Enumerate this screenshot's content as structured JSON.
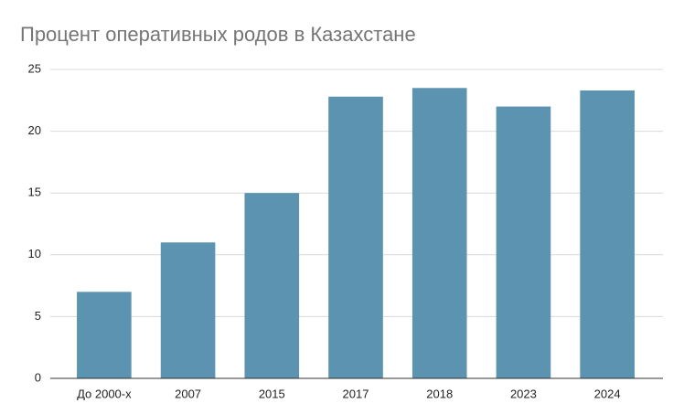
{
  "chart_data": {
    "type": "bar",
    "title": "Процент оперативных родов в Казахстане",
    "categories": [
      "До 2000-х",
      "2007",
      "2015",
      "2017",
      "2018",
      "2023",
      "2024"
    ],
    "values": [
      7,
      11,
      15,
      22.8,
      23.5,
      22,
      23.3
    ],
    "color": "#5b93b0",
    "ylim": [
      0,
      25
    ],
    "yticks": [
      0,
      5,
      10,
      15,
      20,
      25
    ],
    "grid": true
  }
}
